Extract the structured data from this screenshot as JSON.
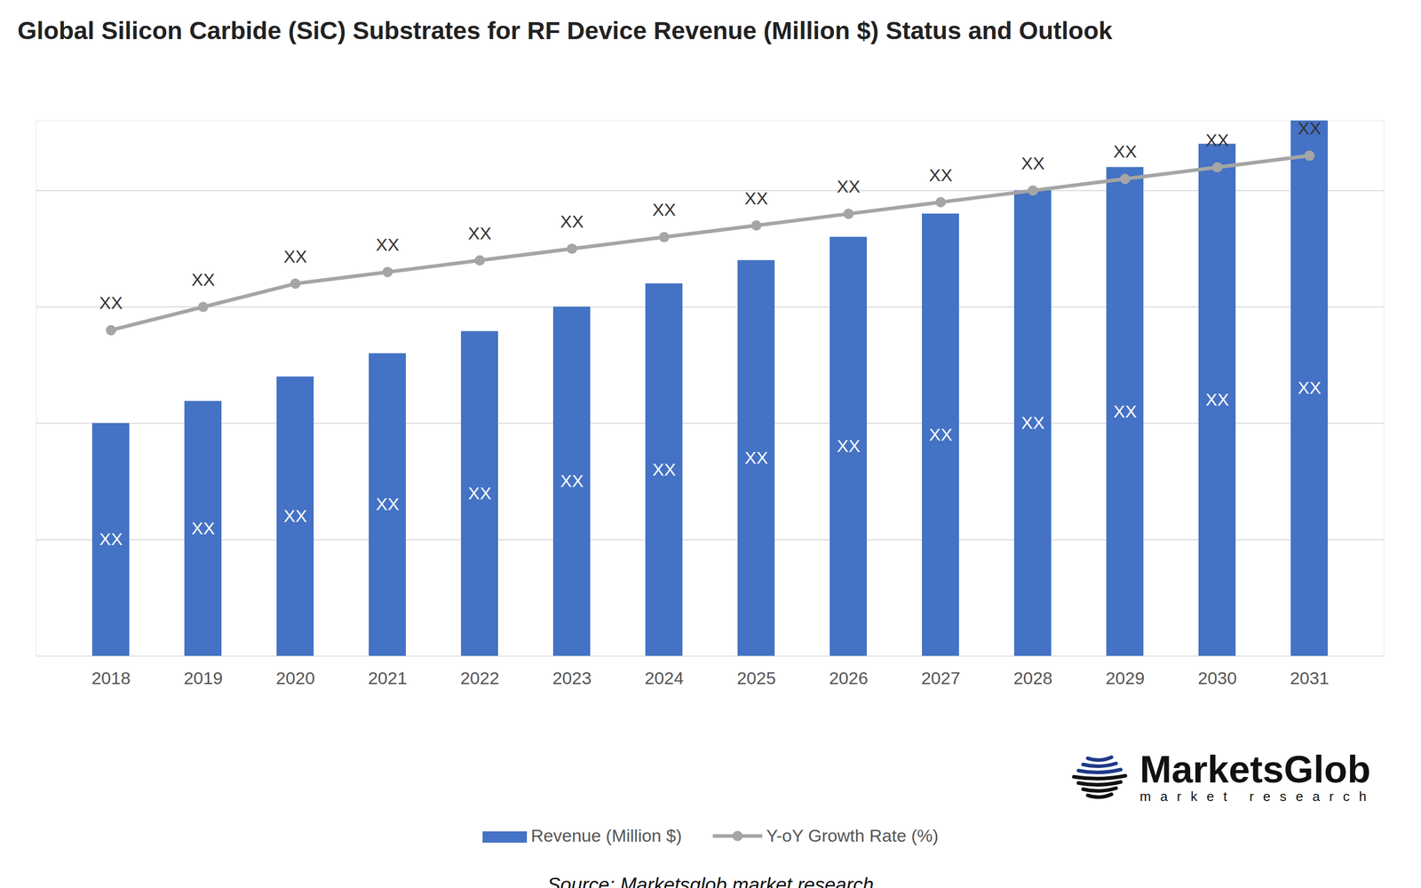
{
  "chart_data": {
    "type": "bar",
    "title": "Global Silicon Carbide (SiC) Substrates for RF Device Revenue (Million $) Status and Outlook",
    "categories": [
      "2018",
      "2019",
      "2020",
      "2021",
      "2022",
      "2023",
      "2024",
      "2025",
      "2026",
      "2027",
      "2028",
      "2029",
      "2030",
      "2031"
    ],
    "series": [
      {
        "name": "Revenue (Million $)",
        "type": "bar",
        "color": "#4472c4",
        "values": [
          2.0,
          2.19,
          2.4,
          2.6,
          2.79,
          3.0,
          3.2,
          3.4,
          3.6,
          3.8,
          4.0,
          4.2,
          4.4,
          4.6
        ],
        "value_labels": [
          "XX",
          "XX",
          "XX",
          "XX",
          "XX",
          "XX",
          "XX",
          "XX",
          "XX",
          "XX",
          "XX",
          "XX",
          "XX",
          "XX"
        ]
      },
      {
        "name": "Y-oY Growth Rate (%)",
        "type": "line",
        "color": "#a5a5a5",
        "marker": "circle",
        "values": [
          2.8,
          3.0,
          3.2,
          3.3,
          3.4,
          3.5,
          3.6,
          3.7,
          3.8,
          3.9,
          4.0,
          4.1,
          4.2,
          4.3
        ],
        "value_labels": [
          "XX",
          "XX",
          "XX",
          "XX",
          "XX",
          "XX",
          "XX",
          "XX",
          "XX",
          "XX",
          "XX",
          "XX",
          "XX",
          "XX"
        ]
      }
    ],
    "ylim": [
      0,
      4.6
    ],
    "yticks": [
      0,
      1,
      2,
      3,
      4
    ],
    "grid": true,
    "data_labels": true,
    "tick_labels": "x",
    "legend": "bottom",
    "source": "Source: Marketsglob market research",
    "brand": {
      "name": "MarketsGlob",
      "tagline": "market research"
    }
  }
}
